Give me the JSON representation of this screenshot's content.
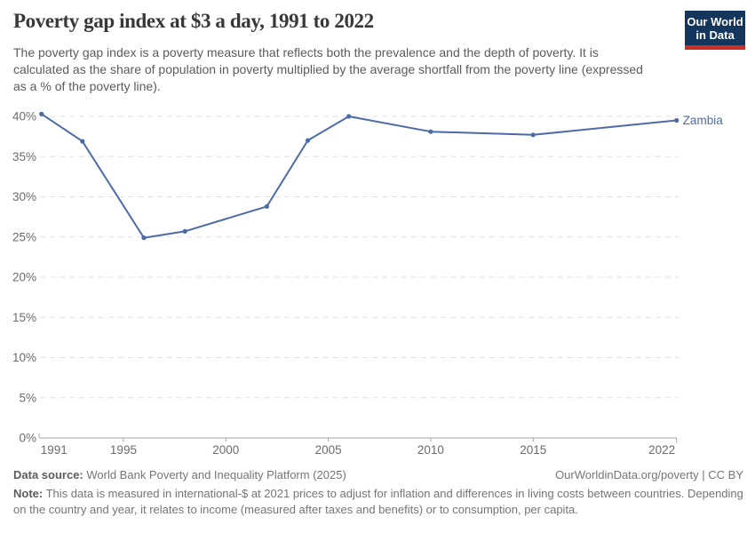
{
  "header": {
    "title": "Poverty gap index at $3 a day, 1991 to 2022",
    "subtitle": "The poverty gap index is a poverty measure that reflects both the prevalence and the depth of poverty. It is calculated as the share of population in poverty multiplied by the average shortfall from the poverty line (expressed as a % of the poverty line).",
    "logo": {
      "line1": "Our World",
      "line2": "in Data"
    }
  },
  "chart_data": {
    "type": "line",
    "title": "Poverty gap index at $3 a day, 1991 to 2022",
    "x": [
      1991,
      1993,
      1996,
      1998,
      2002,
      2004,
      2006,
      2010,
      2015,
      2022
    ],
    "series": [
      {
        "name": "Zambia",
        "values": [
          40.3,
          36.9,
          24.9,
          25.7,
          28.8,
          37.0,
          40.0,
          38.1,
          37.7,
          39.5
        ]
      }
    ],
    "x_tick_labels": [
      "1991",
      "1995",
      "2000",
      "2005",
      "2010",
      "2015",
      "2022"
    ],
    "y_tick_labels": [
      "0%",
      "5%",
      "10%",
      "15%",
      "20%",
      "25%",
      "30%",
      "35%",
      "40%"
    ],
    "xlim": [
      1991,
      2022
    ],
    "ylim": [
      0,
      40
    ],
    "unit": "%",
    "grid": "horizontal-dashed",
    "legend_position": "end-of-line-label",
    "entity_label": "Zambia"
  },
  "colors": {
    "line": "#4c6ba6",
    "grid": "#e0e0e0",
    "axis": "#a5a5a5",
    "tick_text": "#6b6b6b",
    "title_text": "#383838",
    "subtitle_text": "#5b5b5b",
    "footer_text": "#757575",
    "footer_label": "#5d5d5d",
    "logo_bg": "#14355c",
    "logo_accent": "#cc2d24"
  },
  "footer": {
    "data_source_label": "Data source:",
    "data_source_value": " World Bank Poverty and Inequality Platform (2025)",
    "link": "OurWorldinData.org/poverty | CC BY",
    "note_label": "Note:",
    "note_value": " This data is measured in international-$ at 2021 prices to adjust for inflation and differences in living costs between countries. Depending on the country and year, it relates to income (measured after taxes and benefits) or to consumption, per capita."
  }
}
